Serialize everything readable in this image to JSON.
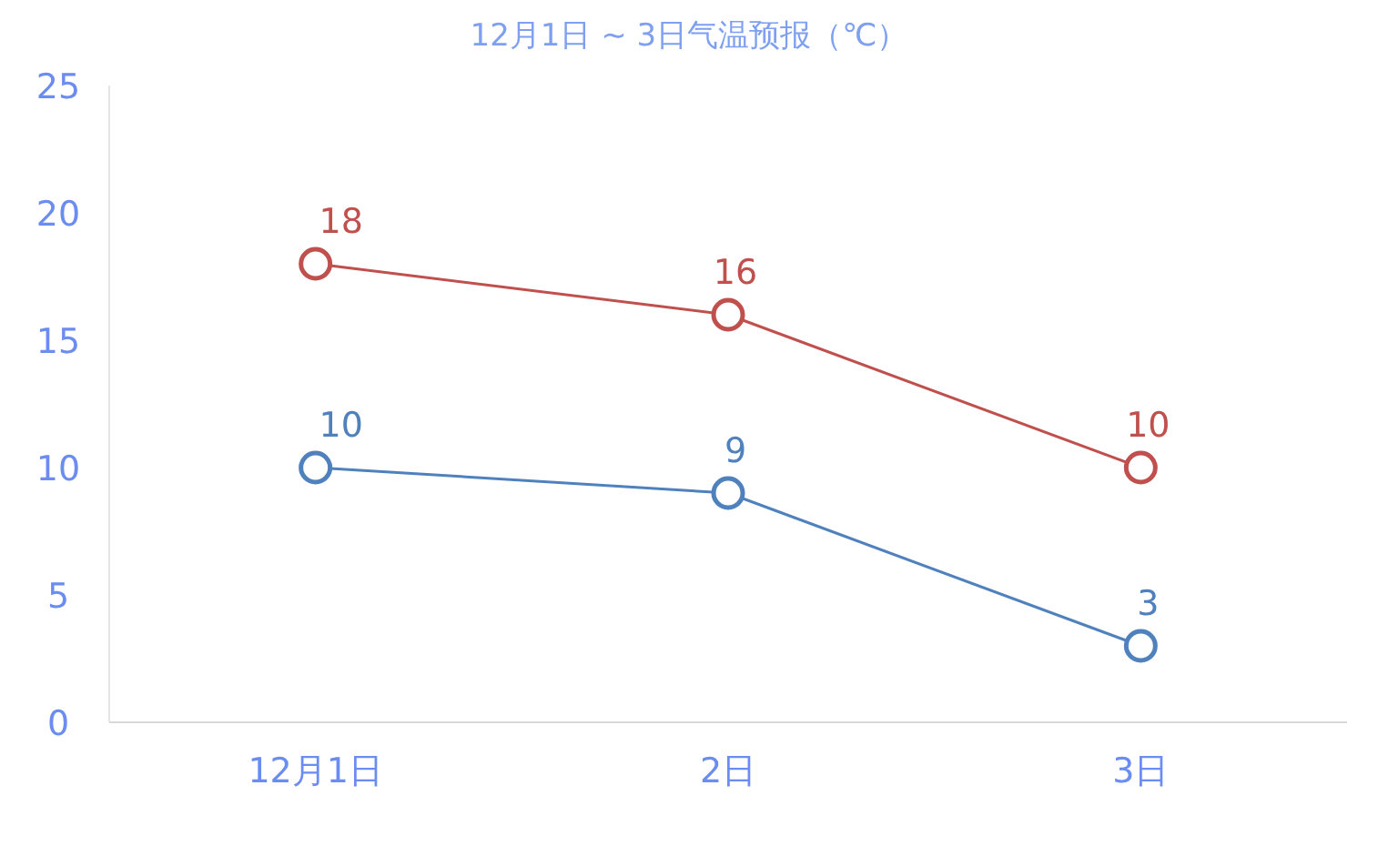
{
  "chart_data": {
    "type": "line",
    "title": "12月1日 ~ 3日气温预报（℃）",
    "categories": [
      "12月1日",
      "2日",
      "3日"
    ],
    "series": [
      {
        "color": "#c0504d",
        "values": [
          18,
          16,
          10
        ]
      },
      {
        "color": "#4f81bd",
        "values": [
          10,
          9,
          3
        ]
      }
    ],
    "ylim": [
      0,
      25
    ],
    "yticks": [
      0,
      5,
      10,
      15,
      20,
      25
    ],
    "data_labels": true,
    "marker": "circle",
    "line_style": "solid"
  }
}
